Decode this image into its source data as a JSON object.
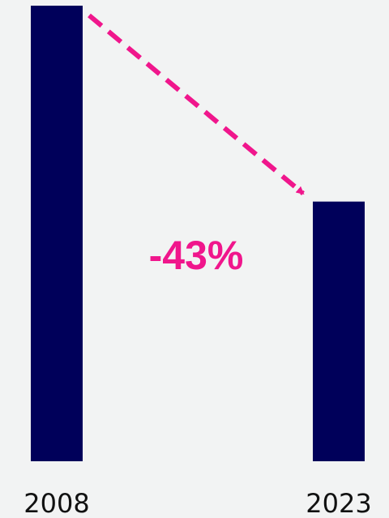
{
  "chart_data": {
    "type": "bar",
    "categories": [
      "2008",
      "2023"
    ],
    "values": [
      100,
      57
    ],
    "ylim": [
      0,
      100
    ],
    "annotation": "-43%",
    "bar_color": "#00005a",
    "accent_color": "#f0168c"
  }
}
